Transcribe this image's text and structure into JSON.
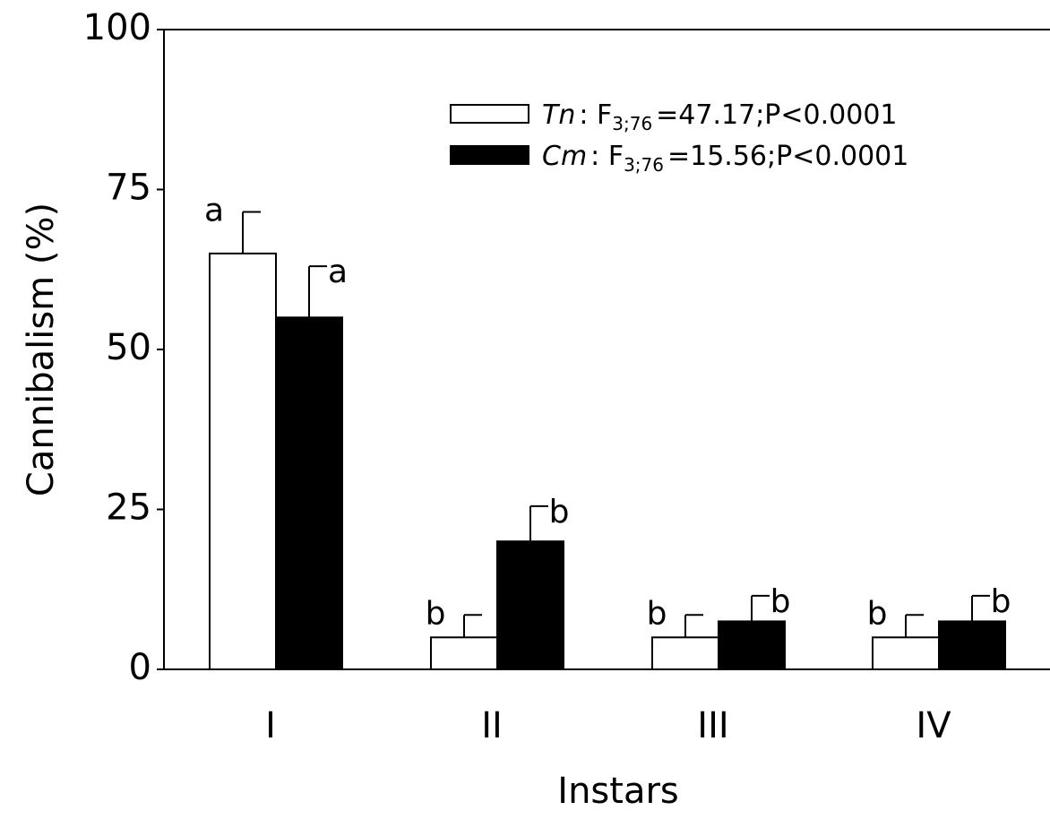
{
  "chart_data": {
    "type": "bar",
    "x_label": "Instars",
    "y_label": "Cannibalism (%)",
    "categories": [
      "I",
      "II",
      "III",
      "IV"
    ],
    "series": [
      {
        "name": "Tn",
        "color": "#ffffff",
        "values": [
          65,
          5,
          5,
          5
        ],
        "errors": [
          6.5,
          3.5,
          3.5,
          3.5
        ],
        "letters": [
          "a",
          "b",
          "b",
          "b"
        ],
        "stat": {
          "prefix": ": F",
          "subscript": "3;76",
          "text": "=47.17;P<0.0001"
        }
      },
      {
        "name": "Cm",
        "color": "#000000",
        "values": [
          55,
          20,
          7.5,
          7.5
        ],
        "errors": [
          8,
          5.5,
          4,
          4
        ],
        "letters": [
          "a",
          "b",
          "b",
          "b"
        ],
        "stat": {
          "prefix": ": F",
          "subscript": "3;76",
          "text": "=15.56;P<0.0001"
        }
      }
    ],
    "ylim": [
      0,
      100
    ],
    "yticks": [
      0,
      25,
      50,
      75,
      100
    ],
    "grid": false
  }
}
